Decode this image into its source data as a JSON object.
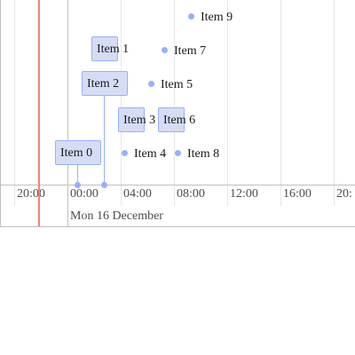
{
  "timeline": {
    "minor_labels": [
      "20:00",
      "00:00",
      "04:00",
      "08:00",
      "12:00",
      "16:00",
      "20:"
    ],
    "major_label": "Mon 16 December",
    "items": [
      {
        "key": "item-0",
        "label": "Item 0",
        "kind": "box"
      },
      {
        "key": "item-1",
        "label": "Item 1",
        "kind": "box"
      },
      {
        "key": "item-2",
        "label": "Item 2",
        "kind": "box"
      },
      {
        "key": "item-3",
        "label": "Item 3",
        "kind": "box"
      },
      {
        "key": "item-4",
        "label": "Item 4",
        "kind": "point"
      },
      {
        "key": "item-5",
        "label": "Item 5",
        "kind": "point"
      },
      {
        "key": "item-6",
        "label": "Item 6",
        "kind": "box"
      },
      {
        "key": "item-7",
        "label": "Item 7",
        "kind": "point"
      },
      {
        "key": "item-8",
        "label": "Item 8",
        "kind": "point"
      },
      {
        "key": "item-9",
        "label": "Item 9",
        "kind": "point"
      }
    ],
    "colors": {
      "item_fill": "#d5ddf6",
      "item_border": "#97b0f8",
      "current_time": "#ff7f6e",
      "grid_minor": "#e6e6e6",
      "grid_major": "#bfbfbf"
    }
  }
}
